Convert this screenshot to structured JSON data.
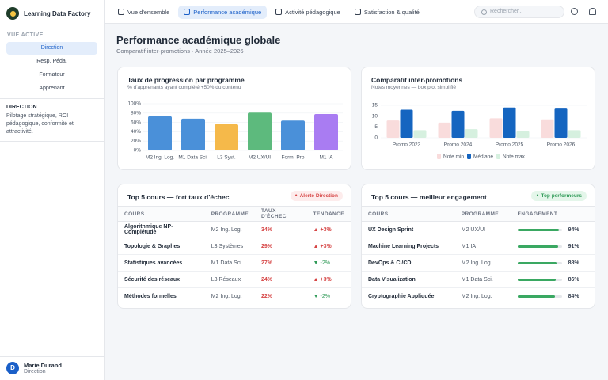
{
  "sidebar": {
    "brand": "Learning Data Factory",
    "section_label": "VUE ACTIVE",
    "nav": [
      "Direction",
      "Resp. Péda.",
      "Formateur",
      "Apprenant"
    ],
    "role_title": "DIRECTION",
    "role_desc": "Pilotage stratégique, ROI pédagogique, conformité et attractivité.",
    "user": {
      "initial": "D",
      "name": "Marie Durand",
      "role": "Direction"
    }
  },
  "topbar": {
    "tabs": [
      "Vue d'ensemble",
      "Performance académique",
      "Activité pédagogique",
      "Satisfaction & qualité"
    ],
    "search_placeholder": "Rechercher..."
  },
  "page": {
    "title": "Performance académique globale",
    "subtitle": "Comparatif inter-promotions · Année 2025–2026"
  },
  "chart_data": [
    {
      "type": "bar",
      "title": "Taux de progression par programme",
      "subtitle": "% d'apprenants ayant complété +50% du contenu",
      "categories": [
        "M2 Ing. Log.",
        "M1 Data Sci.",
        "L3 Syst.",
        "M2 UX/UI",
        "Form. Pro",
        "M1 IA"
      ],
      "values": [
        73,
        68,
        56,
        81,
        64,
        78
      ],
      "colors": [
        "#4a90d9",
        "#4a90d9",
        "#f5b94a",
        "#5dba7d",
        "#4a90d9",
        "#a97cf2"
      ],
      "ylim": [
        0,
        100
      ],
      "yticks": [
        {
          "value": 0,
          "label": "0%"
        },
        {
          "value": 20,
          "label": "20%"
        },
        {
          "value": 40,
          "label": "40%"
        },
        {
          "value": 60,
          "label": "60%"
        },
        {
          "value": 80,
          "label": "80%"
        },
        {
          "value": 100,
          "label": "100%"
        }
      ],
      "grid": true
    },
    {
      "type": "grouped_bar",
      "title": "Comparatif inter-promotions",
      "subtitle": "Notes moyennes — box plot simplifié",
      "categories": [
        "Promo 2023",
        "Promo 2024",
        "Promo 2025",
        "Promo 2026"
      ],
      "series": [
        {
          "name": "Note min",
          "color": "#f9dcdc",
          "values": [
            8,
            7,
            9,
            8.5
          ]
        },
        {
          "name": "Médiane",
          "color": "#1565c0",
          "values": [
            13,
            12.5,
            14,
            13.5
          ]
        },
        {
          "name": "Note max",
          "color": "#d6f0df",
          "values": [
            3.5,
            4,
            3,
            3.5
          ]
        }
      ],
      "ylim": [
        0,
        15
      ],
      "yticks": [
        0,
        5,
        10,
        15
      ],
      "grid": true,
      "legend": "bottom"
    }
  ],
  "tables": [
    {
      "title": "Top 5 cours — fort taux d'échec",
      "badge": "Alerte Direction",
      "columns": [
        "COURS",
        "PROGRAMME",
        "TAUX D'ÉCHEC",
        "TENDANCE"
      ],
      "rows": [
        [
          "Algorithmique NP-Complétude",
          "M2 Ing. Log.",
          "34%",
          "▲ +3%"
        ],
        [
          "Topologie & Graphes",
          "L3 Systèmes",
          "29%",
          "▲ +3%"
        ],
        [
          "Statistiques avancées",
          "M1 Data Sci.",
          "27%",
          "▼ -2%"
        ],
        [
          "Sécurité des réseaux",
          "L3 Réseaux",
          "24%",
          "▲ +3%"
        ],
        [
          "Méthodes formelles",
          "M2 Ing. Log.",
          "22%",
          "▼ -2%"
        ]
      ]
    },
    {
      "title": "Top 5 cours — meilleur engagement",
      "badge": "Top performeurs",
      "columns": [
        "COURS",
        "PROGRAMME",
        "ENGAGEMENT"
      ],
      "rows": [
        [
          "UX Design Sprint",
          "M2 UX/UI",
          {
            "value": 94,
            "label": "94%"
          }
        ],
        [
          "Machine Learning Projects",
          "M1 IA",
          {
            "value": 91,
            "label": "91%"
          }
        ],
        [
          "DevOps & CI/CD",
          "M2 Ing. Log.",
          {
            "value": 88,
            "label": "88%"
          }
        ],
        [
          "Data Visualization",
          "M1 Data Sci.",
          {
            "value": 86,
            "label": "86%"
          }
        ],
        [
          "Cryptographie Appliquée",
          "M2 Ing. Log.",
          {
            "value": 84,
            "label": "84%"
          }
        ]
      ]
    }
  ]
}
